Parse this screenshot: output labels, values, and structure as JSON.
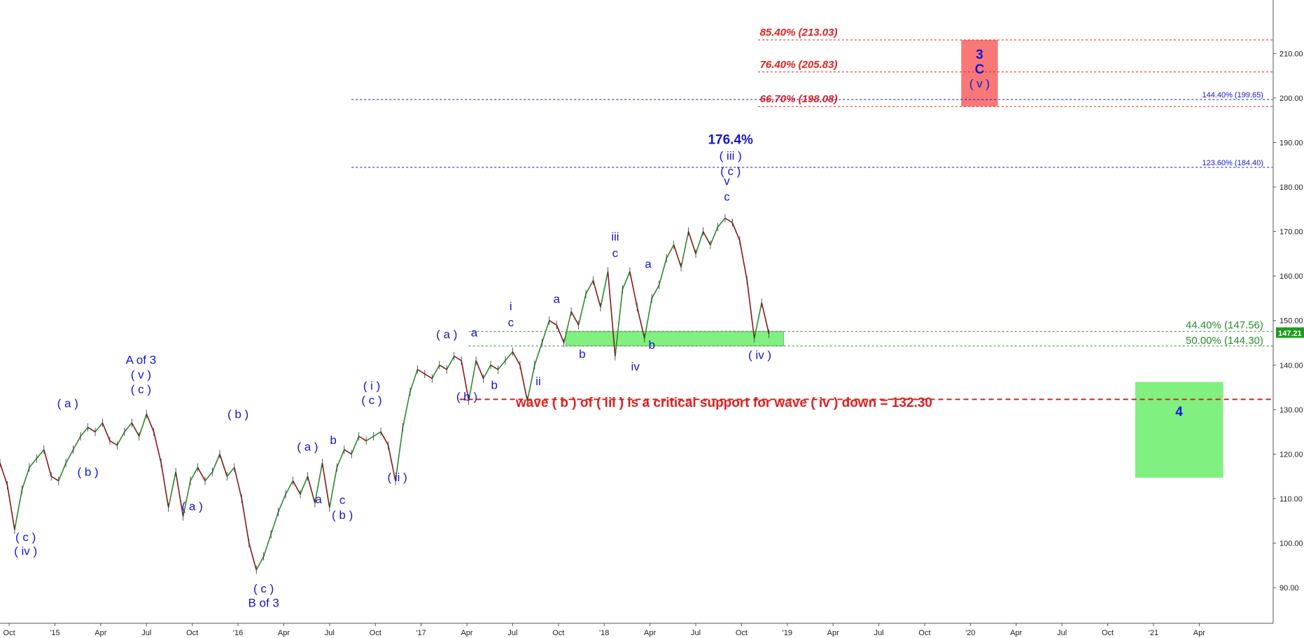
{
  "chart_data": {
    "type": "line",
    "title": "",
    "xlabel": "",
    "ylabel": "",
    "ylim": [
      82,
      222
    ],
    "xlim": [
      2014.7,
      2021.65
    ],
    "grid": false,
    "colors": {
      "price": "#8b1a1a",
      "price_alt": "#2e8b2e",
      "label": "#1515d4",
      "fib_red": "#e02020",
      "fib_blue": "#1515d4",
      "fib_green": "#2e8b2e",
      "zone_green": "#80f080",
      "zone_red": "#f87878",
      "current_price_bg": "#1e9a1e"
    },
    "y_ticks": [
      {
        "value": 90,
        "label": "90.00"
      },
      {
        "value": 100,
        "label": "100.00"
      },
      {
        "value": 110,
        "label": "110.00"
      },
      {
        "value": 120,
        "label": "120.00"
      },
      {
        "value": 130,
        "label": "130.00"
      },
      {
        "value": 140,
        "label": "140.00"
      },
      {
        "value": 150,
        "label": "150.00"
      },
      {
        "value": 160,
        "label": "160.00"
      },
      {
        "value": 170,
        "label": "170.00"
      },
      {
        "value": 180,
        "label": "180.00"
      },
      {
        "value": 190,
        "label": "190.00"
      },
      {
        "value": 200,
        "label": "200.00"
      },
      {
        "value": 210,
        "label": "210.00"
      }
    ],
    "x_ticks": [
      {
        "value": 2014.75,
        "label": "Oct"
      },
      {
        "value": 2015.0,
        "label": "'15"
      },
      {
        "value": 2015.25,
        "label": "Apr"
      },
      {
        "value": 2015.5,
        "label": "Jul"
      },
      {
        "value": 2015.75,
        "label": "Oct"
      },
      {
        "value": 2016.0,
        "label": "'16"
      },
      {
        "value": 2016.25,
        "label": "Apr"
      },
      {
        "value": 2016.5,
        "label": "Jul"
      },
      {
        "value": 2016.75,
        "label": "Oct"
      },
      {
        "value": 2017.0,
        "label": "'17"
      },
      {
        "value": 2017.25,
        "label": "Apr"
      },
      {
        "value": 2017.5,
        "label": "Jul"
      },
      {
        "value": 2017.75,
        "label": "Oct"
      },
      {
        "value": 2018.0,
        "label": "'18"
      },
      {
        "value": 2018.25,
        "label": "Apr"
      },
      {
        "value": 2018.5,
        "label": "Jul"
      },
      {
        "value": 2018.75,
        "label": "Oct"
      },
      {
        "value": 2019.0,
        "label": "'19"
      },
      {
        "value": 2019.25,
        "label": "Apr"
      },
      {
        "value": 2019.5,
        "label": "Jul"
      },
      {
        "value": 2019.75,
        "label": "Oct"
      },
      {
        "value": 2020.0,
        "label": "'20"
      },
      {
        "value": 2020.25,
        "label": "Apr"
      },
      {
        "value": 2020.5,
        "label": "Jul"
      },
      {
        "value": 2020.75,
        "label": "Oct"
      },
      {
        "value": 2021.0,
        "label": "'21"
      },
      {
        "value": 2021.25,
        "label": "Apr"
      }
    ],
    "series": [
      {
        "x": [
          2014.7,
          2014.74,
          2014.78,
          2014.82,
          2014.86,
          2014.9,
          2014.94,
          2014.98,
          2015.02,
          2015.06,
          2015.1,
          2015.14,
          2015.18,
          2015.22,
          2015.26,
          2015.3,
          2015.34,
          2015.38,
          2015.42,
          2015.46,
          2015.5,
          2015.54,
          2015.58,
          2015.62,
          2015.66,
          2015.7,
          2015.74,
          2015.78,
          2015.82,
          2015.86,
          2015.9,
          2015.94,
          2015.98,
          2016.02,
          2016.06,
          2016.1,
          2016.14,
          2016.18,
          2016.22,
          2016.26,
          2016.3,
          2016.34,
          2016.38,
          2016.42,
          2016.46,
          2016.5,
          2016.54,
          2016.58,
          2016.62,
          2016.66,
          2016.7,
          2016.74,
          2016.78,
          2016.82,
          2016.86,
          2016.9,
          2016.94,
          2016.98,
          2017.02,
          2017.06,
          2017.1,
          2017.14,
          2017.18,
          2017.22,
          2017.26,
          2017.3,
          2017.34,
          2017.38,
          2017.42,
          2017.46,
          2017.5,
          2017.54,
          2017.58,
          2017.62,
          2017.66,
          2017.7,
          2017.74,
          2017.78,
          2017.82,
          2017.86,
          2017.9,
          2017.94,
          2017.98,
          2018.02,
          2018.06,
          2018.1,
          2018.14,
          2018.18,
          2018.22,
          2018.26,
          2018.3,
          2018.34,
          2018.38,
          2018.42,
          2018.46,
          2018.5,
          2018.54,
          2018.58,
          2018.62,
          2018.66,
          2018.7,
          2018.74,
          2018.78,
          2018.82,
          2018.86,
          2018.9
        ],
        "y": [
          118,
          113,
          103,
          112,
          117,
          119,
          121,
          115,
          114,
          118,
          121,
          124,
          126,
          125,
          127,
          123,
          122,
          125,
          127,
          124,
          129,
          125,
          118,
          108,
          116,
          106,
          114,
          117,
          114,
          116,
          120,
          115,
          117,
          110,
          100,
          94,
          97,
          102,
          107,
          111,
          114,
          111,
          115,
          109,
          118,
          108,
          117,
          121,
          120,
          124,
          123,
          124,
          125,
          122,
          114,
          126,
          134,
          139,
          138,
          137,
          140,
          139,
          142,
          141,
          132,
          141,
          137,
          140,
          139,
          141,
          143,
          140,
          132,
          140,
          145,
          150,
          149,
          145,
          152,
          149,
          156,
          159,
          153,
          161,
          142,
          157,
          161,
          153,
          146,
          155,
          158,
          164,
          167,
          162,
          170,
          165,
          170,
          167,
          171,
          173,
          172,
          168,
          159,
          146,
          154,
          147
        ]
      }
    ],
    "fib_levels": [
      {
        "label": "85.40% (213.03)",
        "value": 213.03,
        "group": "red"
      },
      {
        "label": "76.40% (205.83)",
        "value": 205.83,
        "group": "red"
      },
      {
        "label": "66.70% (198.08)",
        "value": 198.08,
        "group": "red"
      },
      {
        "label": "144.40% (199.65)",
        "value": 199.65,
        "group": "blue"
      },
      {
        "label": "123.60% (184.40)",
        "value": 184.4,
        "group": "blue"
      },
      {
        "label": "44.40% (147.56)",
        "value": 147.56,
        "group": "green"
      },
      {
        "label": "50.00% (144.30)",
        "value": 144.3,
        "group": "green"
      }
    ],
    "support_line": {
      "value": 132.3,
      "from_x": 2017.21,
      "to_x": 2021.65
    },
    "annotation_text": "wave ( b ) of ( iii ) is a critical support for wave ( iv ) down  = 132.30",
    "current_price": "147.21",
    "current_price_value": 147.21,
    "zones": [
      {
        "name": "green-target-zone",
        "x0": 2017.79,
        "x1": 2018.98,
        "y0": 144.3,
        "y1": 147.56,
        "color": "#80f080"
      },
      {
        "name": "red-target-zone",
        "x0": 2019.95,
        "x1": 2020.15,
        "y0": 198.08,
        "y1": 213.03,
        "color": "#f87878"
      },
      {
        "name": "wave-4-zone",
        "x0": 2020.9,
        "x1": 2021.38,
        "y0": 114.7,
        "y1": 136.2,
        "color": "#80f080"
      }
    ],
    "wave_labels": [
      {
        "text": "( c )",
        "x": 2014.84,
        "y": 100.5
      },
      {
        "text": "( iv )",
        "x": 2014.84,
        "y": 97.3
      },
      {
        "text": "( a )",
        "x": 2015.07,
        "y": 130.5
      },
      {
        "text": "( b )",
        "x": 2015.18,
        "y": 115.1
      },
      {
        "text": "A of 3",
        "x": 2015.47,
        "y": 140.3
      },
      {
        "text": "( v )",
        "x": 2015.47,
        "y": 137.0
      },
      {
        "text": "( c )",
        "x": 2015.47,
        "y": 133.7
      },
      {
        "text": "( a )",
        "x": 2015.75,
        "y": 107.4
      },
      {
        "text": "( b )",
        "x": 2016.0,
        "y": 128.1
      },
      {
        "text": "( c )",
        "x": 2016.14,
        "y": 88.9
      },
      {
        "text": "B of 3",
        "x": 2016.14,
        "y": 85.7
      },
      {
        "text": "( a )",
        "x": 2016.38,
        "y": 120.8
      },
      {
        "text": "a",
        "x": 2016.44,
        "y": 109.0
      },
      {
        "text": "b",
        "x": 2016.52,
        "y": 122.3
      },
      {
        "text": "c",
        "x": 2016.57,
        "y": 108.8
      },
      {
        "text": "( b )",
        "x": 2016.57,
        "y": 105.4
      },
      {
        "text": "( i )",
        "x": 2016.73,
        "y": 134.5
      },
      {
        "text": "( c )",
        "x": 2016.73,
        "y": 131.2
      },
      {
        "text": "( ii )",
        "x": 2016.87,
        "y": 113.9
      },
      {
        "text": "( a )",
        "x": 2017.14,
        "y": 146.0
      },
      {
        "text": "a",
        "x": 2017.29,
        "y": 146.4
      },
      {
        "text": "( b )",
        "x": 2017.25,
        "y": 132.0
      },
      {
        "text": "b",
        "x": 2017.4,
        "y": 134.6
      },
      {
        "text": "i",
        "x": 2017.49,
        "y": 152.3
      },
      {
        "text": "c",
        "x": 2017.49,
        "y": 148.7
      },
      {
        "text": "ii",
        "x": 2017.64,
        "y": 135.5
      },
      {
        "text": "a",
        "x": 2017.74,
        "y": 154.0
      },
      {
        "text": "b",
        "x": 2017.88,
        "y": 141.6
      },
      {
        "text": "iii",
        "x": 2018.06,
        "y": 168.0
      },
      {
        "text": "c",
        "x": 2018.06,
        "y": 164.3
      },
      {
        "text": "iv",
        "x": 2018.17,
        "y": 138.8
      },
      {
        "text": "a",
        "x": 2018.24,
        "y": 161.8
      },
      {
        "text": "b",
        "x": 2018.26,
        "y": 143.7
      },
      {
        "text": "176.4%",
        "x": 2018.69,
        "y": 189.7
      },
      {
        "text": "( iii )",
        "x": 2018.69,
        "y": 186.1
      },
      {
        "text": "( c )",
        "x": 2018.69,
        "y": 182.7
      },
      {
        "text": "v",
        "x": 2018.67,
        "y": 180.5
      },
      {
        "text": "c",
        "x": 2018.67,
        "y": 176.9
      },
      {
        "text": "( iv )",
        "x": 2018.85,
        "y": 141.4
      },
      {
        "text": "3",
        "x": 2020.05,
        "y": 208.8
      },
      {
        "text": "C",
        "x": 2020.05,
        "y": 205.5
      },
      {
        "text": "( v )",
        "x": 2020.05,
        "y": 202.3
      },
      {
        "text": "4",
        "x": 2021.14,
        "y": 128.6
      }
    ]
  }
}
